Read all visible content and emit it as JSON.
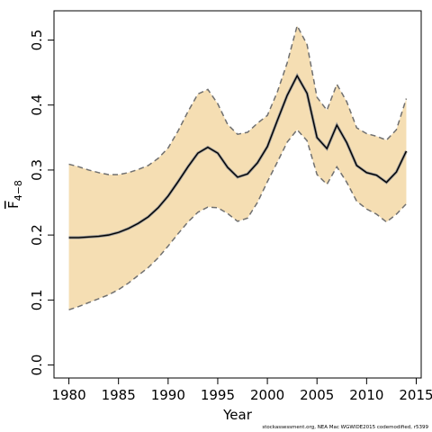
{
  "chart_data": {
    "type": "line",
    "xlabel": "Year",
    "ylabel": {
      "main": "F",
      "subscript": "4−8"
    },
    "xlim": [
      1978.5,
      2015.5
    ],
    "ylim": [
      -0.02,
      0.545
    ],
    "xticks": [
      1980,
      1985,
      1990,
      1995,
      2000,
      2005,
      2010,
      2015
    ],
    "xtick_labels": [
      "1980",
      "1985",
      "1990",
      "1995",
      "2000",
      "2005",
      "2010",
      "2015"
    ],
    "yticks": [
      0.0,
      0.1,
      0.2,
      0.3,
      0.4,
      0.5
    ],
    "ytick_labels": [
      "0.0",
      "0.1",
      "0.2",
      "0.3",
      "0.4",
      "0.5"
    ],
    "colors": {
      "band": "#f5deb3",
      "bound_line": "#707070",
      "estimate_line": "#000000"
    },
    "x": [
      1980,
      1981,
      1982,
      1983,
      1984,
      1985,
      1986,
      1987,
      1988,
      1989,
      1990,
      1991,
      1992,
      1993,
      1994,
      1995,
      1996,
      1997,
      1998,
      1999,
      2000,
      2001,
      2002,
      2003,
      2004,
      2005,
      2006,
      2007,
      2008,
      2009,
      2010,
      2011,
      2012,
      2013,
      2014
    ],
    "series": [
      {
        "values": [
          0.196,
          0.196,
          0.197,
          0.198,
          0.2,
          0.204,
          0.21,
          0.218,
          0.228,
          0.242,
          0.26,
          0.282,
          0.305,
          0.326,
          0.335,
          0.326,
          0.304,
          0.289,
          0.294,
          0.311,
          0.336,
          0.376,
          0.415,
          0.445,
          0.418,
          0.35,
          0.333,
          0.369,
          0.342,
          0.307,
          0.296,
          0.292,
          0.281,
          0.297,
          0.329
        ]
      },
      {
        "values": [
          0.309,
          0.305,
          0.3,
          0.296,
          0.293,
          0.293,
          0.296,
          0.301,
          0.307,
          0.318,
          0.334,
          0.36,
          0.39,
          0.417,
          0.424,
          0.402,
          0.37,
          0.355,
          0.358,
          0.372,
          0.384,
          0.42,
          0.465,
          0.522,
          0.493,
          0.412,
          0.392,
          0.432,
          0.405,
          0.365,
          0.356,
          0.352,
          0.346,
          0.362,
          0.41
        ]
      },
      {
        "values": [
          0.085,
          0.09,
          0.096,
          0.102,
          0.108,
          0.116,
          0.126,
          0.138,
          0.15,
          0.165,
          0.183,
          0.202,
          0.22,
          0.235,
          0.243,
          0.242,
          0.233,
          0.221,
          0.226,
          0.25,
          0.282,
          0.312,
          0.343,
          0.362,
          0.345,
          0.293,
          0.278,
          0.305,
          0.281,
          0.252,
          0.24,
          0.232,
          0.22,
          0.232,
          0.248
        ]
      }
    ]
  },
  "footer": "stockassessment.org, NEA Mac WGWIDE2015 codemodified, r5399"
}
